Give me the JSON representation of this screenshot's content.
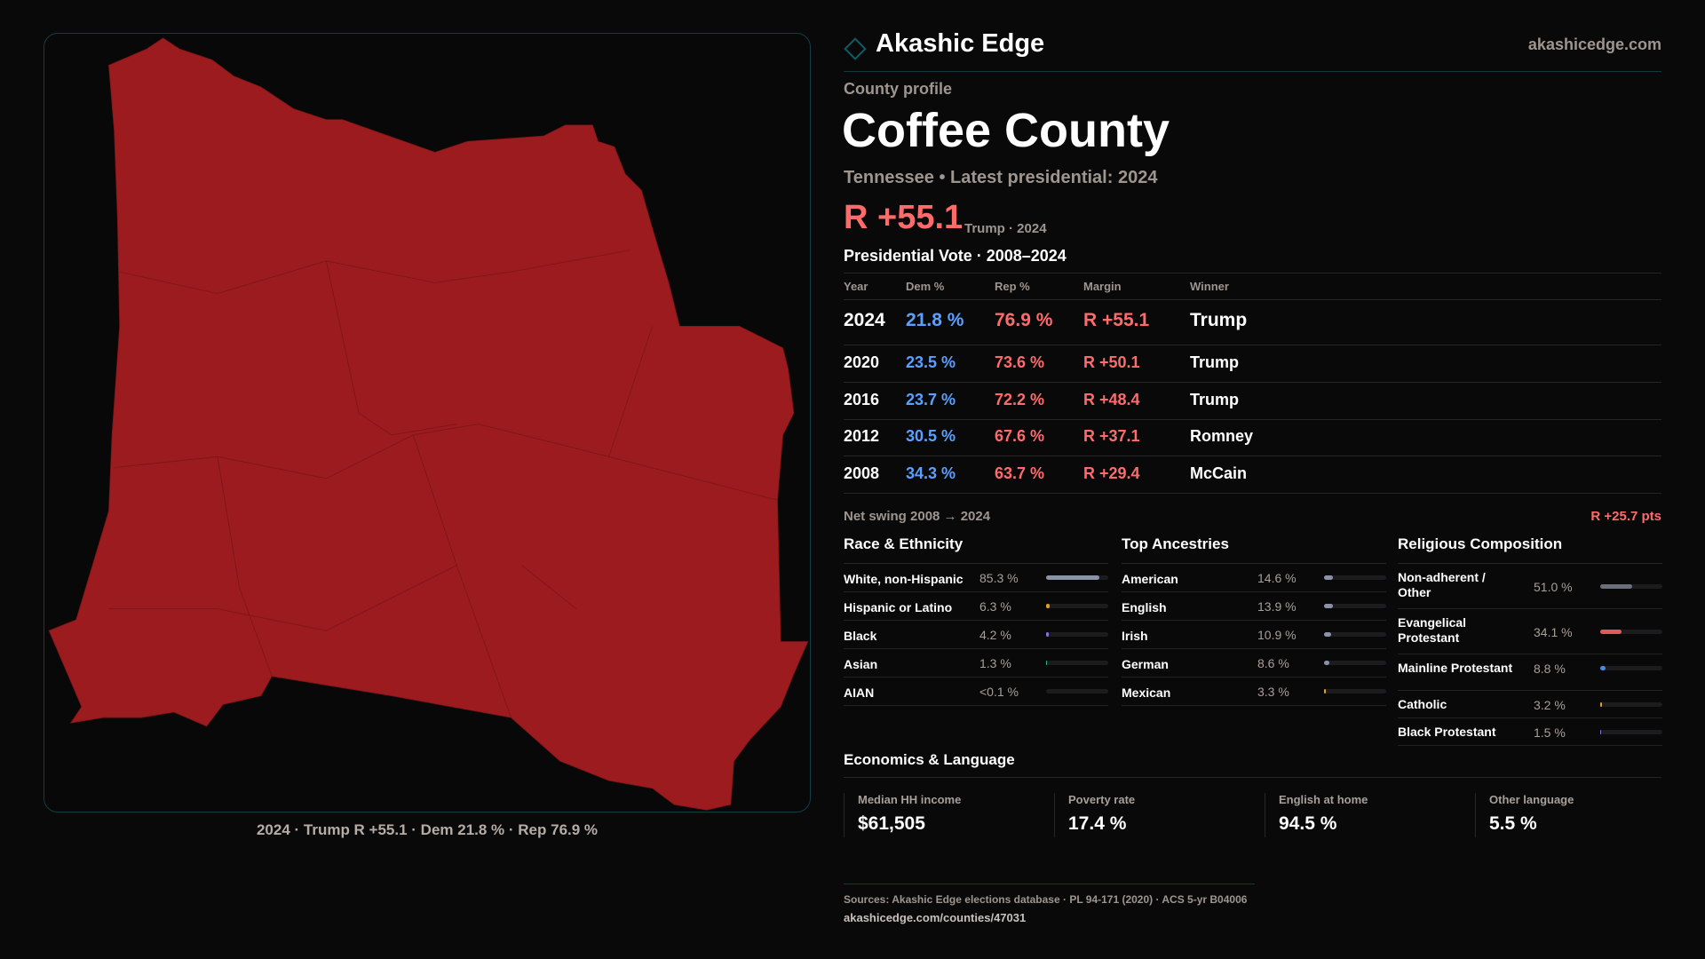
{
  "brand": {
    "name": "Akashic Edge",
    "site": "akashicedge.com",
    "accent": "#0f5b63"
  },
  "map": {
    "fill": "#9b1b1e",
    "caption": "2024 · Trump R +55.1 · Dem 21.8 % · Rep 76.9 %"
  },
  "profile": {
    "eyebrow": "County profile",
    "title": "Coffee County",
    "subtitle": "Tennessee • Latest presidential: 2024",
    "margin": "R +55.1",
    "margin_note": "Trump · 2024"
  },
  "votes": {
    "title": "Presidential Vote · 2008–2024",
    "headers": [
      "Year",
      "Dem %",
      "Rep %",
      "Margin",
      "Winner"
    ],
    "rows": [
      {
        "year": "2024",
        "dem": "21.8 %",
        "rep": "76.9 %",
        "margin": "R +55.1",
        "winner": "Trump"
      },
      {
        "year": "2020",
        "dem": "23.5 %",
        "rep": "73.6 %",
        "margin": "R +50.1",
        "winner": "Trump"
      },
      {
        "year": "2016",
        "dem": "23.7 %",
        "rep": "72.2 %",
        "margin": "R +48.4",
        "winner": "Trump"
      },
      {
        "year": "2012",
        "dem": "30.5 %",
        "rep": "67.6 %",
        "margin": "R +37.1",
        "winner": "Romney"
      },
      {
        "year": "2008",
        "dem": "34.3 %",
        "rep": "63.7 %",
        "margin": "R +29.4",
        "winner": "McCain"
      }
    ],
    "swing_label": "Net swing 2008 → 2024",
    "swing_value": "R +25.7 pts"
  },
  "race": {
    "title": "Race & Ethnicity",
    "items": [
      {
        "label": "White, non-Hispanic",
        "value": "85.3 %",
        "pct": 85.3,
        "color": "#8a93a6"
      },
      {
        "label": "Hispanic or Latino",
        "value": "6.3 %",
        "pct": 6.3,
        "color": "#e0a020"
      },
      {
        "label": "Black",
        "value": "4.2 %",
        "pct": 4.2,
        "color": "#8a70e0"
      },
      {
        "label": "Asian",
        "value": "1.3 %",
        "pct": 1.3,
        "color": "#2bb08a"
      },
      {
        "label": "AIAN",
        "value": "<0.1 %",
        "pct": 0.05,
        "color": "#888"
      }
    ]
  },
  "ancestry": {
    "title": "Top Ancestries",
    "items": [
      {
        "label": "American",
        "value": "14.6 %",
        "pct": 14.6,
        "color": "#8a93a6"
      },
      {
        "label": "English",
        "value": "13.9 %",
        "pct": 13.9,
        "color": "#8a93a6"
      },
      {
        "label": "Irish",
        "value": "10.9 %",
        "pct": 10.9,
        "color": "#8a93a6"
      },
      {
        "label": "German",
        "value": "8.6 %",
        "pct": 8.6,
        "color": "#8a93a6"
      },
      {
        "label": "Mexican",
        "value": "3.3 %",
        "pct": 3.3,
        "color": "#e0a020"
      }
    ]
  },
  "religion": {
    "title": "Religious Composition",
    "items": [
      {
        "label": "Non-adherent / Other",
        "value": "51.0 %",
        "pct": 51.0,
        "color": "#6b6f7a"
      },
      {
        "label": "Evangelical Protestant",
        "value": "34.1 %",
        "pct": 34.1,
        "color": "#e05a5a"
      },
      {
        "label": "Mainline Protestant",
        "value": "8.8 %",
        "pct": 8.8,
        "color": "#4a8ae0"
      },
      {
        "label": "Catholic",
        "value": "3.2 %",
        "pct": 3.2,
        "color": "#e0a020"
      },
      {
        "label": "Black Protestant",
        "value": "1.5 %",
        "pct": 1.5,
        "color": "#8a70e0"
      }
    ]
  },
  "economics": {
    "title": "Economics & Language",
    "stats": [
      {
        "label": "Median HH income",
        "value": "$61,505"
      },
      {
        "label": "Poverty rate",
        "value": "17.4 %"
      },
      {
        "label": "English at home",
        "value": "94.5 %"
      },
      {
        "label": "Other language",
        "value": "5.5 %"
      }
    ]
  },
  "footer": {
    "sources": "Sources: Akashic Edge elections database · PL 94-171 (2020) · ACS 5-yr B04006",
    "url": "akashicedge.com/counties/47031"
  }
}
